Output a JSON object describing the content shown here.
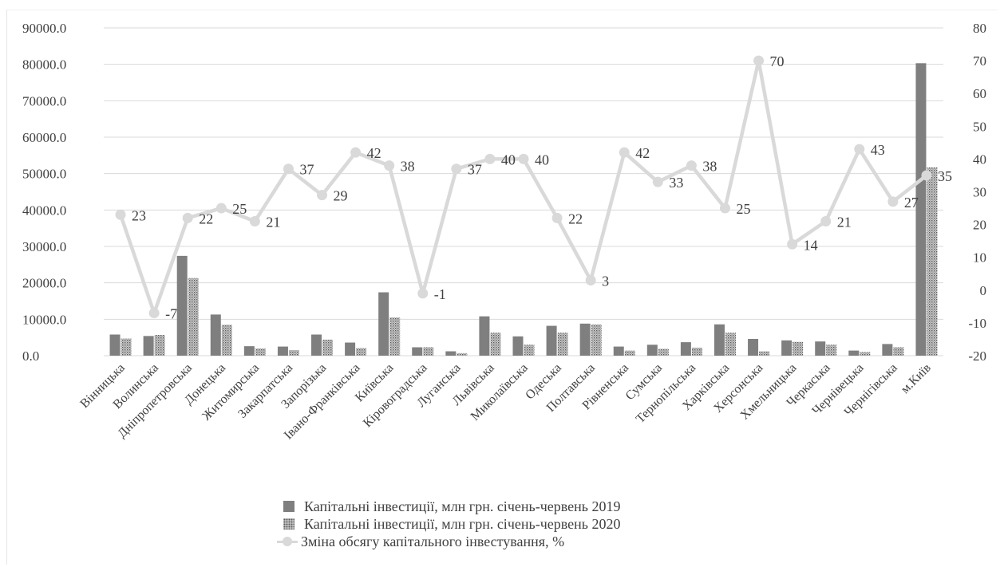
{
  "chart_data": {
    "type": "bar",
    "categories": [
      "Вінницька",
      "Волинська",
      "Дніпропетровська",
      "Донецька",
      "Житомирська",
      "Закарпатська",
      "Запорізька",
      "Івано-Франківська",
      "Київська",
      "Кіровоградська",
      "Луганська",
      "Львівська",
      "Миколаївська",
      "Одеська",
      "Полтавська",
      "Рівненська",
      "Сумська",
      "Тернопільська",
      "Харківська",
      "Херсонська",
      "Хмельницька",
      "Черкаська",
      "Чернівецька",
      "Чернігівська",
      "м.Київ"
    ],
    "series": [
      {
        "name": "Капітальні інвестиції, млн грн. січень-червень 2019",
        "type": "bar",
        "axis": "left",
        "values": [
          5800,
          5400,
          27400,
          11300,
          2600,
          2500,
          5800,
          3600,
          17400,
          2300,
          1200,
          10800,
          5300,
          8200,
          8800,
          2500,
          3000,
          3700,
          8600,
          4600,
          4200,
          3900,
          1400,
          3200,
          80300
        ]
      },
      {
        "name": "Капітальні інвестиції, млн грн. січень-червень 2020",
        "type": "bar",
        "axis": "left",
        "values": [
          4700,
          5700,
          21300,
          8500,
          2000,
          1500,
          4400,
          2100,
          10500,
          2300,
          700,
          6300,
          3000,
          6300,
          8600,
          1400,
          1900,
          2200,
          6300,
          1200,
          3800,
          3000,
          1000,
          2300,
          51700
        ]
      },
      {
        "name": "Зміна обсягу капітального інвестування, %",
        "type": "line",
        "axis": "right",
        "values": [
          23,
          -7,
          22,
          25,
          21,
          37,
          29,
          42,
          38,
          -1,
          37,
          40,
          40,
          22,
          3,
          42,
          33,
          38,
          25,
          70,
          14,
          21,
          43,
          27,
          35
        ]
      }
    ],
    "data_labels": [
      "23",
      "-7",
      "22",
      "25",
      "21",
      "37",
      "29",
      "42",
      "38",
      "-1",
      "37",
      "40",
      "40",
      "22",
      "3",
      "42",
      "33",
      "38",
      "25",
      "70",
      "14",
      "21",
      "43",
      "27",
      "35"
    ],
    "y_left": {
      "min": 0,
      "max": 90000,
      "step": 10000,
      "tick_labels": [
        "0.0",
        "10000.0",
        "20000.0",
        "30000.0",
        "40000.0",
        "50000.0",
        "60000.0",
        "70000.0",
        "80000.0",
        "90000.0"
      ]
    },
    "y_right": {
      "min": -20,
      "max": 80,
      "step": 10,
      "tick_labels": [
        "-20",
        "-10",
        "0",
        "10",
        "20",
        "30",
        "40",
        "50",
        "60",
        "70",
        "80"
      ]
    },
    "grid": true,
    "legend_position": "bottom",
    "colors": {
      "bar2019": "#7f7f7f",
      "bar2020_dots": "#5a5a5a",
      "bar2020_bg": "#d0d0d0",
      "line": "#d9d9d9",
      "grid": "#d9d9d9",
      "text": "#404040"
    }
  },
  "legend": {
    "item_2019": "Капітальні інвестиції, млн грн. січень-червень 2019",
    "item_2020": "Капітальні інвестиції, млн грн. січень-червень 2020",
    "item_change": "Зміна обсягу капітального інвестування, %"
  }
}
